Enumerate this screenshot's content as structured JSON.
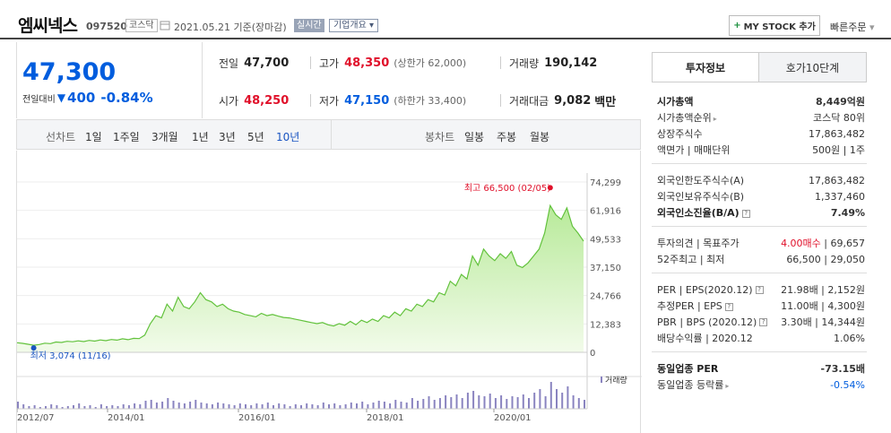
{
  "header": {
    "name": "엠씨넥스",
    "code": "097520",
    "market": "코스닥",
    "date": "2021.05.21 기준(장마감)",
    "live": "실시간",
    "overview": "기업개요",
    "mystock": "MY STOCK 추가",
    "quick": "빠른주문"
  },
  "price": {
    "current": "47,300",
    "change_label": "전일대비",
    "change": "400",
    "change_pct": "-0.84%"
  },
  "quote": {
    "prev_label": "전일",
    "prev": "47,700",
    "high_label": "고가",
    "high": "48,350",
    "upper_limit": "(상한가 62,000)",
    "volume_label": "거래량",
    "volume": "190,142",
    "open_label": "시가",
    "open": "48,250",
    "low_label": "저가",
    "low": "47,150",
    "lower_limit": "(하한가 33,400)",
    "amount_label": "거래대금",
    "amount": "9,082",
    "amount_unit": "백만"
  },
  "toolbar": {
    "line_chart": "선차트",
    "periods": [
      "1일",
      "1주일",
      "3개월",
      "1년",
      "3년",
      "5년",
      "10년"
    ],
    "candle_chart": "봉차트",
    "candles": [
      "일봉",
      "주봉",
      "월봉"
    ]
  },
  "chart_data": {
    "type": "area",
    "y_ticks": [
      "74,299",
      "61,916",
      "49,533",
      "37,150",
      "24,766",
      "12,383",
      "0"
    ],
    "x_ticks": [
      "2012/07",
      "2014/01",
      "2016/01",
      "2018/01",
      "2020/01"
    ],
    "max_label": "최고 66,500 (02/05)",
    "min_label": "최저 3,074 (11/16)",
    "volume_label": "거래량",
    "ylim": [
      0,
      74299
    ],
    "series": [
      {
        "values": [
          4200,
          3900,
          3500,
          3074,
          3400,
          4000,
          3800,
          4500,
          4300,
          4800,
          4600,
          5000,
          4700,
          5200,
          4900,
          5400,
          5100,
          5600,
          5300,
          5900,
          5500,
          6100,
          6000,
          7500,
          12500,
          16000,
          15000,
          21000,
          18000,
          24000,
          20000,
          19000,
          22000,
          26000,
          23000,
          22000,
          20000,
          21000,
          19000,
          18000,
          17500,
          16500,
          16000,
          15500,
          17000,
          16000,
          16500,
          15800,
          15200,
          15000,
          14500,
          14000,
          13500,
          13000,
          12500,
          13000,
          12000,
          11500,
          12500,
          11800,
          13500,
          12000,
          14000,
          13000,
          14500,
          13500,
          16000,
          15000,
          17500,
          16000,
          19000,
          18000,
          21000,
          20000,
          23000,
          22000,
          26000,
          25000,
          31000,
          29000,
          34000,
          32000,
          42000,
          38000,
          45000,
          42000,
          40000,
          43000,
          41000,
          44000,
          38000,
          37000,
          39000,
          42000,
          45000,
          52000,
          64000,
          60000,
          58000,
          63000,
          55000,
          52000,
          48500
        ]
      }
    ],
    "volume": [
      8,
      5,
      3,
      4,
      2,
      3,
      5,
      4,
      2,
      3,
      4,
      6,
      3,
      4,
      2,
      5,
      3,
      4,
      3,
      5,
      4,
      6,
      5,
      9,
      10,
      7,
      8,
      12,
      9,
      7,
      6,
      8,
      10,
      7,
      6,
      5,
      7,
      6,
      5,
      4,
      6,
      5,
      4,
      6,
      5,
      7,
      4,
      6,
      5,
      3,
      5,
      4,
      6,
      5,
      4,
      7,
      5,
      6,
      4,
      5,
      7,
      6,
      8,
      5,
      7,
      9,
      8,
      6,
      10,
      8,
      7,
      12,
      9,
      11,
      14,
      10,
      12,
      15,
      13,
      16,
      12,
      18,
      20,
      15,
      14,
      17,
      12,
      15,
      11,
      14,
      13,
      16,
      12,
      18,
      22,
      14,
      30,
      22,
      18,
      25,
      15,
      12,
      10
    ]
  },
  "right": {
    "tab_on": "투자정보",
    "tab_off": "호가10단계",
    "rows": [
      {
        "l": "시가총액",
        "r": "8,449억원"
      },
      {
        "l": "시가총액순위",
        "r": "코스닥 80위"
      },
      {
        "l": "상장주식수",
        "r": "17,863,482"
      },
      {
        "l": "액면가 | 매매단위",
        "r": "500원 | 1주"
      },
      {
        "l": "외국인한도주식수(A)",
        "r": "17,863,482"
      },
      {
        "l": "외국인보유주식수(B)",
        "r": "1,337,460"
      },
      {
        "l": "외국인소진율(B/A)",
        "r": "7.49%"
      },
      {
        "l": "투자의견 | 목표주가",
        "r_red": "4.00매수",
        "r": " | 69,657"
      },
      {
        "l": "52주최고 | 최저",
        "r": "66,500 | 29,050"
      },
      {
        "l": "PER | EPS(2020.12)",
        "r": "21.98배 | 2,152원"
      },
      {
        "l": "추정PER | EPS",
        "r": "11.00배 | 4,300원"
      },
      {
        "l": "PBR | BPS (2020.12)",
        "r": "3.30배 | 14,344원"
      },
      {
        "l": "배당수익률 | 2020.12",
        "r": "1.06%"
      },
      {
        "l": "동일업종 PER",
        "r": "-73.15배"
      },
      {
        "l": "동일업종 등락률",
        "r": "-0.54%"
      }
    ]
  }
}
